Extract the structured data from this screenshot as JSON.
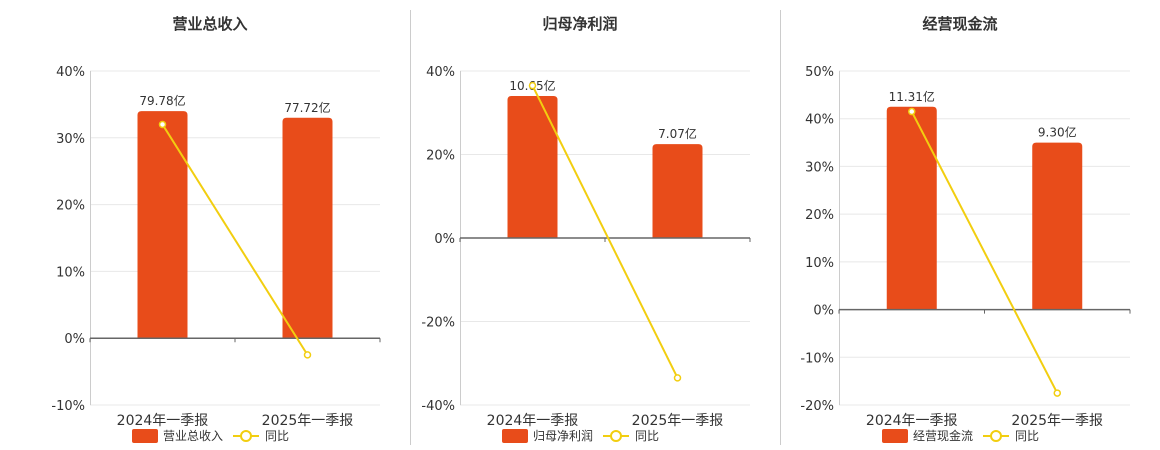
{
  "colors": {
    "bar": "#E84C1A",
    "line": "#F2CE10",
    "axis": "#666666",
    "grid": "#E8E8E8",
    "text": "#333333",
    "divider": "#CCCCCC"
  },
  "chart_data": [
    {
      "type": "bar",
      "title": "营业总收入",
      "categories": [
        "2024年一季报",
        "2025年一季报"
      ],
      "bar_labels": [
        "79.78亿",
        "77.72亿"
      ],
      "bar_values": [
        34,
        33
      ],
      "line_values": [
        32,
        -2.5
      ],
      "ylim": [
        -10,
        40
      ],
      "yticks": [
        -10,
        0,
        10,
        20,
        30,
        40
      ],
      "ytick_labels": [
        "-10%",
        "0%",
        "10%",
        "20%",
        "30%",
        "40%"
      ],
      "legend": [
        "营业总收入",
        "同比"
      ]
    },
    {
      "type": "bar",
      "title": "归母净利润",
      "categories": [
        "2024年一季报",
        "2025年一季报"
      ],
      "bar_labels": [
        "10.65亿",
        "7.07亿"
      ],
      "bar_values": [
        34,
        22.5
      ],
      "line_values": [
        36.5,
        -33.5
      ],
      "ylim": [
        -40,
        40
      ],
      "yticks": [
        -40,
        -20,
        0,
        20,
        40
      ],
      "ytick_labels": [
        "-40%",
        "-20%",
        "0%",
        "20%",
        "40%"
      ],
      "legend": [
        "归母净利润",
        "同比"
      ]
    },
    {
      "type": "bar",
      "title": "经营现金流",
      "categories": [
        "2024年一季报",
        "2025年一季报"
      ],
      "bar_labels": [
        "11.31亿",
        "9.30亿"
      ],
      "bar_values": [
        42.5,
        35
      ],
      "line_values": [
        41.5,
        -17.5
      ],
      "ylim": [
        -20,
        50
      ],
      "yticks": [
        -20,
        -10,
        0,
        10,
        20,
        30,
        40,
        50
      ],
      "ytick_labels": [
        "-20%",
        "-10%",
        "0%",
        "10%",
        "20%",
        "30%",
        "40%",
        "50%"
      ],
      "legend": [
        "经营现金流",
        "同比"
      ]
    }
  ]
}
